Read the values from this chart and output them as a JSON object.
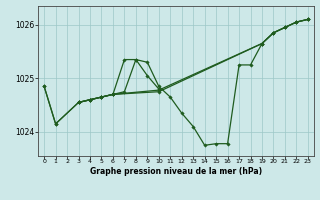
{
  "title": "Graphe pression niveau de la mer (hPa)",
  "background_color": "#cde8e8",
  "grid_color": "#9dc8c8",
  "line_color": "#1f5c1f",
  "xlim": [
    -0.5,
    23.5
  ],
  "ylim": [
    1023.55,
    1026.35
  ],
  "yticks": [
    1024,
    1025,
    1026
  ],
  "xticks": [
    0,
    1,
    2,
    3,
    4,
    5,
    6,
    7,
    8,
    9,
    10,
    11,
    12,
    13,
    14,
    15,
    16,
    17,
    18,
    19,
    20,
    21,
    22,
    23
  ],
  "series": [
    {
      "x": [
        0,
        1,
        3,
        4,
        5,
        6,
        7,
        8,
        9,
        10,
        11,
        12,
        13,
        14,
        15,
        16,
        17,
        18,
        19,
        20,
        21,
        22,
        23
      ],
      "y": [
        1024.85,
        1024.15,
        1024.55,
        1024.6,
        1024.65,
        1024.7,
        1024.75,
        1025.35,
        1025.3,
        1024.85,
        1024.65,
        1024.35,
        1024.1,
        1023.75,
        1023.78,
        1023.78,
        1025.25,
        1025.25,
        1025.65,
        1025.85,
        1025.95,
        1026.05,
        1026.1
      ]
    },
    {
      "x": [
        0,
        1,
        3,
        4,
        5,
        6,
        10,
        19,
        20,
        21,
        22,
        23
      ],
      "y": [
        1024.85,
        1024.15,
        1024.55,
        1024.6,
        1024.65,
        1024.7,
        1024.75,
        1025.65,
        1025.85,
        1025.95,
        1026.05,
        1026.1
      ]
    },
    {
      "x": [
        3,
        4,
        5,
        6,
        10,
        19,
        20,
        21,
        22,
        23
      ],
      "y": [
        1024.55,
        1024.6,
        1024.65,
        1024.7,
        1024.78,
        1025.65,
        1025.85,
        1025.95,
        1026.05,
        1026.1
      ]
    },
    {
      "x": [
        3,
        4,
        5,
        6,
        7,
        8,
        9,
        10
      ],
      "y": [
        1024.55,
        1024.6,
        1024.65,
        1024.7,
        1025.35,
        1025.35,
        1025.05,
        1024.8
      ]
    }
  ]
}
